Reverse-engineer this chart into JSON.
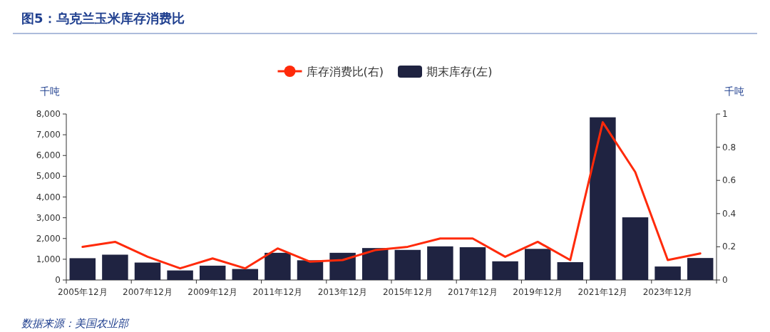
{
  "chart_data": {
    "type": "bar",
    "title": "图5：乌克兰玉米库存消费比",
    "ylabel": "千吨",
    "y2label": "千吨",
    "categories": [
      "2005年12月",
      null,
      "2007年12月",
      null,
      "2009年12月",
      null,
      "2011年12月",
      null,
      "2013年12月",
      null,
      "2015年12月",
      null,
      "2017年12月",
      null,
      "2019年12月",
      null,
      "2021年12月",
      null,
      "2023年12月",
      null
    ],
    "series": [
      {
        "name": "库存消费比(右)",
        "type": "line",
        "axis": "y2",
        "color": "#ff2a0a",
        "marker": "none",
        "values": [
          0.2,
          0.23,
          0.14,
          0.07,
          0.13,
          0.07,
          0.19,
          0.11,
          0.12,
          0.18,
          0.2,
          0.25,
          0.25,
          0.14,
          0.23,
          0.12,
          0.95,
          0.65,
          0.12,
          0.16
        ]
      },
      {
        "name": "期末库存(左)",
        "color": "#1f2341",
        "values": [
          1050,
          1220,
          840,
          460,
          690,
          530,
          1310,
          950,
          1310,
          1540,
          1450,
          1620,
          1580,
          900,
          1500,
          860,
          7840,
          3020,
          650,
          1060
        ]
      }
    ],
    "ylim": [
      0,
      8000
    ],
    "yticks": [
      0,
      {
        "value": 1000,
        "label": "1,000"
      },
      {
        "value": 2000,
        "label": "2,000"
      },
      {
        "value": 3000,
        "label": "3,000"
      },
      {
        "value": 4000,
        "label": "4,000"
      },
      {
        "value": 5000,
        "label": "5,000"
      },
      {
        "value": 6000,
        "label": "6,000"
      },
      {
        "value": 7000,
        "label": "7,000"
      },
      {
        "value": 8000,
        "label": "8,000"
      }
    ],
    "y2lim": [
      0,
      1
    ],
    "y2ticks": [
      0,
      0.2,
      0.4,
      0.6,
      0.8,
      1
    ],
    "legend": "top",
    "grid": false,
    "annotations": [
      "数据来源：美国农业部"
    ]
  }
}
